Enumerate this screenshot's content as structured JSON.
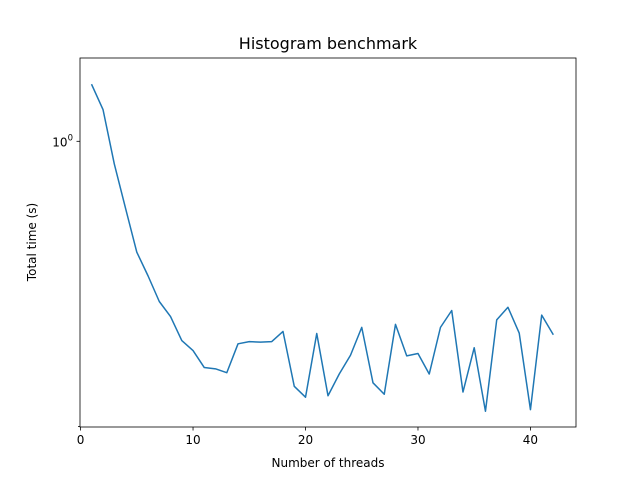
{
  "chart_data": {
    "type": "line",
    "title": "Histogram benchmark",
    "xlabel": "Number of threads",
    "ylabel": "Total time (s)",
    "x_scale": "linear",
    "y_scale": "log",
    "xlim": [
      -0.05,
      44.05
    ],
    "ylim": [
      0.1995,
      1.6
    ],
    "x_ticks": [
      {
        "value": 0,
        "label": "0"
      },
      {
        "value": 10,
        "label": "10"
      },
      {
        "value": 20,
        "label": "20"
      },
      {
        "value": 30,
        "label": "30"
      },
      {
        "value": 40,
        "label": "40"
      }
    ],
    "y_ticks": [
      {
        "value": 1,
        "base": "10",
        "exponent": "0"
      }
    ],
    "y_minor_ticks": [
      0.2
    ],
    "grid": false,
    "series": [
      {
        "color": "#1f77b4",
        "x": [
          1,
          2,
          3,
          4,
          5,
          6,
          7,
          8,
          9,
          10,
          11,
          12,
          13,
          14,
          15,
          16,
          17,
          18,
          19,
          20,
          21,
          22,
          23,
          24,
          25,
          26,
          27,
          28,
          29,
          30,
          31,
          32,
          33,
          34,
          35,
          36,
          37,
          38,
          39,
          40,
          41,
          42
        ],
        "y": [
          1.375,
          1.195,
          0.88,
          0.685,
          0.535,
          0.468,
          0.405,
          0.372,
          0.325,
          0.307,
          0.279,
          0.277,
          0.271,
          0.319,
          0.323,
          0.322,
          0.323,
          0.342,
          0.251,
          0.236,
          0.338,
          0.238,
          0.269,
          0.299,
          0.35,
          0.256,
          0.24,
          0.356,
          0.298,
          0.302,
          0.269,
          0.35,
          0.385,
          0.243,
          0.312,
          0.218,
          0.365,
          0.392,
          0.339,
          0.22,
          0.375,
          0.337
        ]
      }
    ]
  }
}
